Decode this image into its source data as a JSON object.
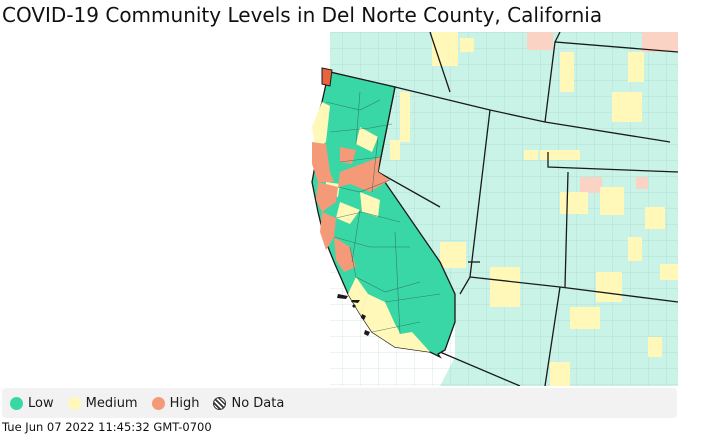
{
  "title": "COVID-19 Community Levels in Del Norte County, California",
  "colors": {
    "low": "#39d7a5",
    "low_other": "#c8f3e6",
    "medium": "#fff8b8",
    "high": "#f49a79",
    "high_other": "#fbd3c4",
    "border": "#1a1a1a",
    "selected_county": "#e8643c"
  },
  "legend": {
    "items": [
      {
        "label": "Low",
        "swatch": "low"
      },
      {
        "label": "Medium",
        "swatch": "medium"
      },
      {
        "label": "High",
        "swatch": "high"
      },
      {
        "label": "No Data",
        "swatch": "hatch-icon"
      }
    ]
  },
  "timestamp": "Tue Jun 07 2022 11:45:32 GMT-0700"
}
